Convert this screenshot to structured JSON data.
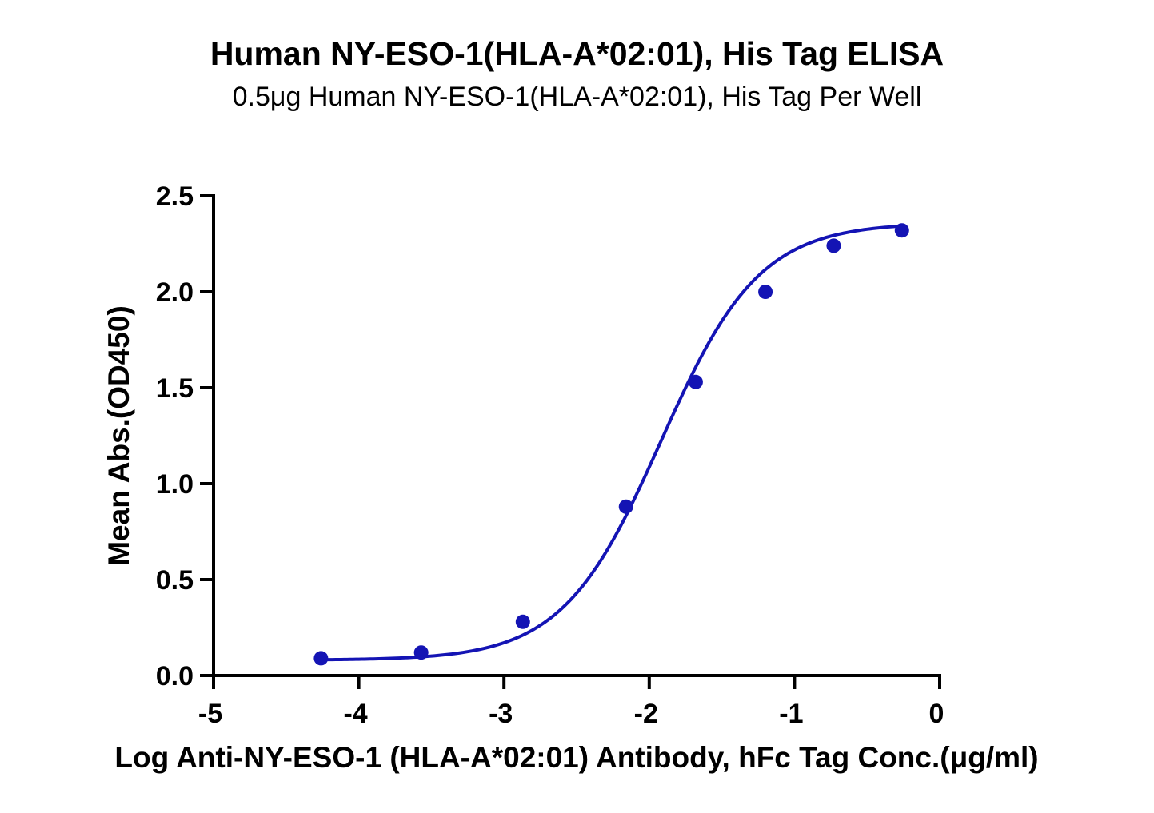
{
  "chart_data": {
    "type": "line",
    "title": "Human NY-ESO-1(HLA-A*02:01), His Tag ELISA",
    "subtitle": "0.5μg Human NY-ESO-1(HLA-A*02:01), His Tag Per Well",
    "xlabel": "Log Anti-NY-ESO-1 (HLA-A*02:01) Antibody, hFc Tag Conc.(μg/ml)",
    "ylabel": "Mean Abs.(OD450)",
    "xlim": [
      -5,
      0
    ],
    "ylim": [
      0,
      2.5
    ],
    "x_ticks": [
      -5,
      -4,
      -3,
      -2,
      -1,
      0
    ],
    "x_tick_labels": [
      "-5",
      "-4",
      "-3",
      "-2",
      "-1",
      "0"
    ],
    "y_ticks": [
      0,
      0.5,
      1.0,
      1.5,
      2.0,
      2.5
    ],
    "y_tick_labels": [
      "0.0",
      "0.5",
      "1.0",
      "1.5",
      "2.0",
      "2.5"
    ],
    "grid": false,
    "series": [
      {
        "x": [
          -4.26,
          -3.57,
          -2.87,
          -2.16,
          -1.68,
          -1.2,
          -0.73,
          -0.26
        ],
        "y": [
          0.09,
          0.12,
          0.28,
          0.88,
          1.53,
          2.0,
          2.24,
          2.32
        ],
        "color": "#1414b4",
        "fit": {
          "bottom": 0.08,
          "top": 2.36,
          "logEC50": -1.92,
          "hill": 1.28
        }
      }
    ]
  }
}
